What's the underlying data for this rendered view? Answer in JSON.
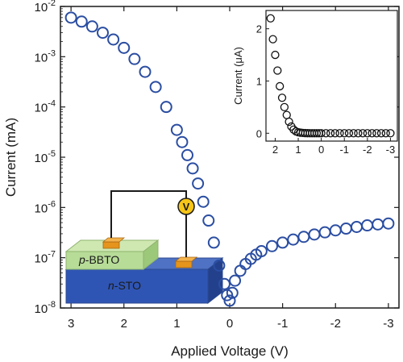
{
  "chart_data": [
    {
      "type": "scatter",
      "xlabel": "Applied Voltage (V)",
      "ylabel": "Current (mA)",
      "xlim": [
        3.2,
        -3.2
      ],
      "ylim": [
        1e-08,
        0.01
      ],
      "yscale": "log",
      "x_ticks": [
        "3",
        "2",
        "1",
        "0",
        "-1",
        "-2",
        "-3"
      ],
      "y_ticks": [
        {
          "base": "10",
          "exp": "-2"
        },
        {
          "base": "10",
          "exp": "-3"
        },
        {
          "base": "10",
          "exp": "-4"
        },
        {
          "base": "10",
          "exp": "-5"
        },
        {
          "base": "10",
          "exp": "-6"
        },
        {
          "base": "10",
          "exp": "-7"
        },
        {
          "base": "10",
          "exp": "-8"
        }
      ],
      "marker_color": "#2b4ea2",
      "series": [
        {
          "name": "",
          "x": [
            3.0,
            2.8,
            2.6,
            2.4,
            2.2,
            2.0,
            1.8,
            1.6,
            1.4,
            1.2,
            1.0,
            0.9,
            0.8,
            0.7,
            0.6,
            0.5,
            0.4,
            0.3,
            0.2,
            0.1,
            0.05,
            0.0,
            -0.05,
            -0.1,
            -0.2,
            -0.3,
            -0.4,
            -0.5,
            -0.6,
            -0.8,
            -1.0,
            -1.2,
            -1.4,
            -1.6,
            -1.8,
            -2.0,
            -2.2,
            -2.4,
            -2.6,
            -2.8,
            -3.0
          ],
          "y": [
            0.006,
            0.005,
            0.004,
            0.003,
            0.0022,
            0.0015,
            0.0009,
            0.0005,
            0.00025,
            0.0001,
            3.5e-05,
            2e-05,
            1.1e-05,
            6e-06,
            3e-06,
            1.3e-06,
            5.5e-07,
            2e-07,
            7e-08,
            3e-08,
            1.8e-08,
            1.4e-08,
            2e-08,
            3.5e-08,
            5.5e-08,
            7.5e-08,
            9.5e-08,
            1.15e-07,
            1.35e-07,
            1.7e-07,
            2e-07,
            2.3e-07,
            2.6e-07,
            2.9e-07,
            3.2e-07,
            3.5e-07,
            3.8e-07,
            4.1e-07,
            4.4e-07,
            4.6e-07,
            4.8e-07
          ]
        }
      ],
      "schematic": {
        "top_layer_italic": "p",
        "top_layer_text": "-BBTO",
        "bottom_layer_italic": "n",
        "bottom_layer_text": "-STO",
        "meter_symbol": "V"
      }
    },
    {
      "type": "scatter",
      "xlabel": "",
      "ylabel": "Current (μA)",
      "xlim": [
        2.4,
        -3.3
      ],
      "ylim": [
        -0.15,
        2.35
      ],
      "x_ticks": [
        "2",
        "1",
        "0",
        "-1",
        "-2",
        "-3"
      ],
      "y_ticks": [
        "0",
        "1",
        "2"
      ],
      "marker_color": "#111111",
      "series": [
        {
          "name": "",
          "x": [
            2.2,
            2.1,
            2.0,
            1.9,
            1.8,
            1.7,
            1.6,
            1.5,
            1.4,
            1.3,
            1.2,
            1.1,
            1.0,
            0.9,
            0.8,
            0.7,
            0.6,
            0.5,
            0.4,
            0.3,
            0.2,
            0.1,
            0.0,
            -0.2,
            -0.4,
            -0.6,
            -0.8,
            -1.0,
            -1.2,
            -1.4,
            -1.6,
            -1.8,
            -2.0,
            -2.2,
            -2.4,
            -2.6,
            -2.8,
            -3.0
          ],
          "y": [
            2.2,
            1.8,
            1.5,
            1.2,
            0.9,
            0.68,
            0.5,
            0.35,
            0.22,
            0.13,
            0.07,
            0.035,
            0.02,
            0.011,
            0.006,
            0.003,
            0.0013,
            0.0005,
            0.0002,
            0.0001,
            0.0,
            0.0,
            0.0,
            0.0,
            0.0,
            0.0,
            0.0,
            0.0,
            0.0,
            0.0,
            0.0,
            0.0,
            0.0,
            0.0,
            0.0,
            0.0,
            0.0,
            0.0
          ]
        }
      ]
    }
  ]
}
